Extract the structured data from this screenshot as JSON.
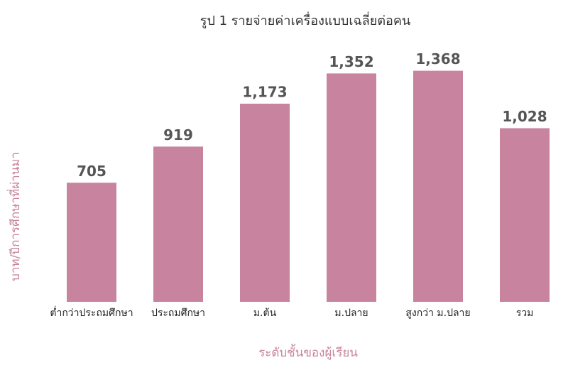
{
  "chart_data": {
    "type": "bar",
    "title": "รูป 1 รายจ่ายค่าเครื่องแบบเฉลี่ยต่อคน",
    "x_label": "ระดับชั้นของผู้เรียน",
    "y_label": "บาท/ปีการศึกษาที่ผ่านมา",
    "categories": [
      "ต่ำกว่าประถมศึกษา",
      "ประถมศึกษา",
      "ม.ต้น",
      "ม.ปลาย",
      "สูงกว่า ม.ปลาย",
      "รวม"
    ],
    "values": [
      705,
      919,
      1173,
      1352,
      1368,
      1028
    ],
    "value_labels": [
      "705",
      "919",
      "1,173",
      "1,352",
      "1,368",
      "1,028"
    ],
    "color": "#c8849e",
    "ylim": [
      0,
      1400
    ],
    "grid": false
  }
}
